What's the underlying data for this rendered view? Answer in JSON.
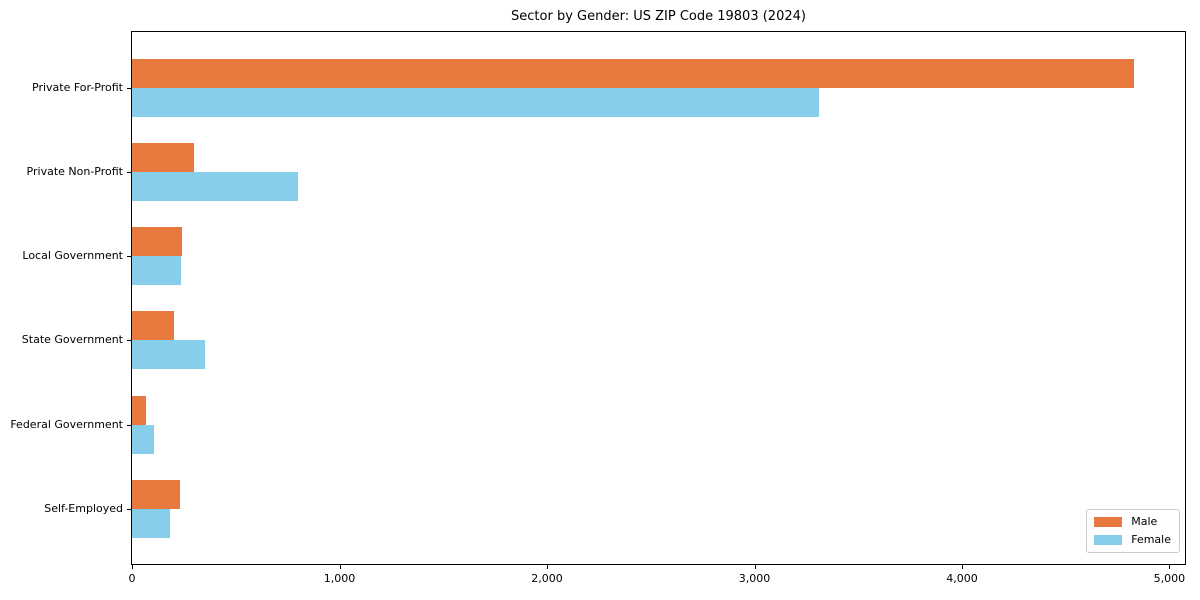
{
  "chart_data": {
    "type": "bar",
    "orientation": "horizontal",
    "title": "Sector by Gender: US ZIP Code 19803 (2024)",
    "categories": [
      "Private For-Profit",
      "Private Non-Profit",
      "Local Government",
      "State Government",
      "Federal Government",
      "Self-Employed"
    ],
    "series": [
      {
        "name": "Male",
        "color": "#E8793E",
        "values": [
          4830,
          300,
          240,
          200,
          65,
          230
        ]
      },
      {
        "name": "Female",
        "color": "#87CEEB",
        "values": [
          3310,
          800,
          235,
          350,
          105,
          185
        ]
      }
    ],
    "xlabel": "",
    "ylabel": "",
    "xlim": [
      0,
      5075
    ],
    "x_ticks": [
      0,
      1000,
      2000,
      3000,
      4000,
      5000
    ],
    "x_tick_labels": [
      "0",
      "1,000",
      "2,000",
      "3,000",
      "4,000",
      "5,000"
    ],
    "grid": false,
    "legend": {
      "position": "lower-right",
      "entries": [
        "Male",
        "Female"
      ]
    },
    "colors": {
      "axis": "#000000",
      "legend_border": "#cccccc",
      "background": "#ffffff"
    }
  }
}
